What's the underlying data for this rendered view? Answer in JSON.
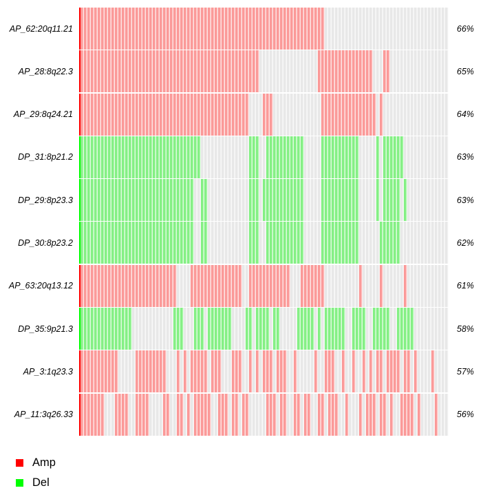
{
  "chart_data": {
    "type": "heatmap",
    "title": "",
    "description": "Oncoprint-style copy-number alteration tracks: one row per genomic region, one thin vertical bar per sample; red = amplification (Amp), green = deletion (Del), gray = no alteration. Right column shows percent of samples altered.",
    "columns": 107,
    "legend_position": "bottom-left",
    "legend": [
      {
        "label": "Amp",
        "color": "#FF0000"
      },
      {
        "label": "Del",
        "color": "#00FF00"
      }
    ],
    "cell_colors": {
      "A": "#FB9A99",
      "D": "#85F085",
      ".": "#E8E8E8"
    },
    "rows": [
      {
        "label": "AP_62:20q11.21",
        "percent": "66%",
        "type": "Amp",
        "accent": "#FF0000",
        "pattern": "AAAAAAAAAAAAAAAAAAAAAAAAAAAAAAAAAAAAAAAAAAAAAAAAAAAAAAAAAAAAAAAAAAAAAAA...................................."
      },
      {
        "label": "AP_28:8q22.3",
        "percent": "65%",
        "type": "Amp",
        "accent": "#FF0000",
        "pattern": "AAAAAAAAAAAAAAAAAAAAAAAAAAAAAAAAAAAAAAAAAAAAAAAAAAAA.................AAAAAAAAAAAAAAAA...AA................."
      },
      {
        "label": "AP_29:8q24.21",
        "percent": "64%",
        "type": "Amp",
        "accent": "#FF0000",
        "pattern": "AAAAAAAAAAAAAAAAAAAAAAAAAAAAAAAAAAAAAAAAAAAAAAAAA....AAA..............AAAAAAAAAAAAAAAA.A..................."
      },
      {
        "label": "DP_31:8p21.2",
        "percent": "63%",
        "type": "Del",
        "accent": "#00FF00",
        "pattern": "DDDDDDDDDDDDDDDDDDDDDDDDDDDDDDDDDDD..............DDD..DDDDDDDDDDD.....DDDDDDDDDDD.....D.DDDDDD............."
      },
      {
        "label": "DP_29:8p23.3",
        "percent": "63%",
        "type": "Del",
        "accent": "#00FF00",
        "pattern": "DDDDDDDDDDDDDDDDDDDDDDDDDDDDDDDDD..DD............DDD.DDDDDDDDDDDD.....DDDDDDDDDDD.....D.DDDDD.D............"
      },
      {
        "label": "DP_30:8p23.2",
        "percent": "62%",
        "type": "Del",
        "accent": "#00FF00",
        "pattern": "DDDDDDDDDDDDDDDDDDDDDDDDDDDDDDDDD..DD............DDD..DDDDDDDDDDD.....DDDDDDDDDDD......DDDDDD.............."
      },
      {
        "label": "AP_63:20q13.12",
        "percent": "61%",
        "type": "Amp",
        "accent": "#FF0000",
        "pattern": "AAAAAAAAAAAAAAAAAAAAAAAAAAAA....AAAAAAAAAAAAAAA..AAAAAAAAAAAA...AAAAAAA..........A.....A......A............"
      },
      {
        "label": "DP_35:9p21.3",
        "percent": "58%",
        "type": "Del",
        "accent": "#00FF00",
        "pattern": "DDDDDDDDDDDDDDD............DDD...DDD.DDDDDDD....DD.DDDD.DD.....DDDDD.D.DDDDDD..DDDD..DDDDD..DDDDD.........."
      },
      {
        "label": "AP_3:1q23.3",
        "percent": "57%",
        "type": "Amp",
        "accent": "#FF0000",
        "pattern": "AAAAAAAAAAA.....AAAAAAAAA...A.A.AAAAA.AAA...AAA..A.A.AAA.AAA..A.....A..AAA..A..A..A.A.AA.AAAA.AA.A....A...."
      },
      {
        "label": "AP_11:3q26.33",
        "percent": "56%",
        "type": "Amp",
        "accent": "#FF0000",
        "pattern": "AAAAAAA...AAAA..AAAA....AA..AA.A.AAAAA..AAA.AA.AA.....AAA.AA..AA.AA..AA.AAA..A...A.AAA.AA.A..AAAA.A....A..."
      }
    ]
  }
}
